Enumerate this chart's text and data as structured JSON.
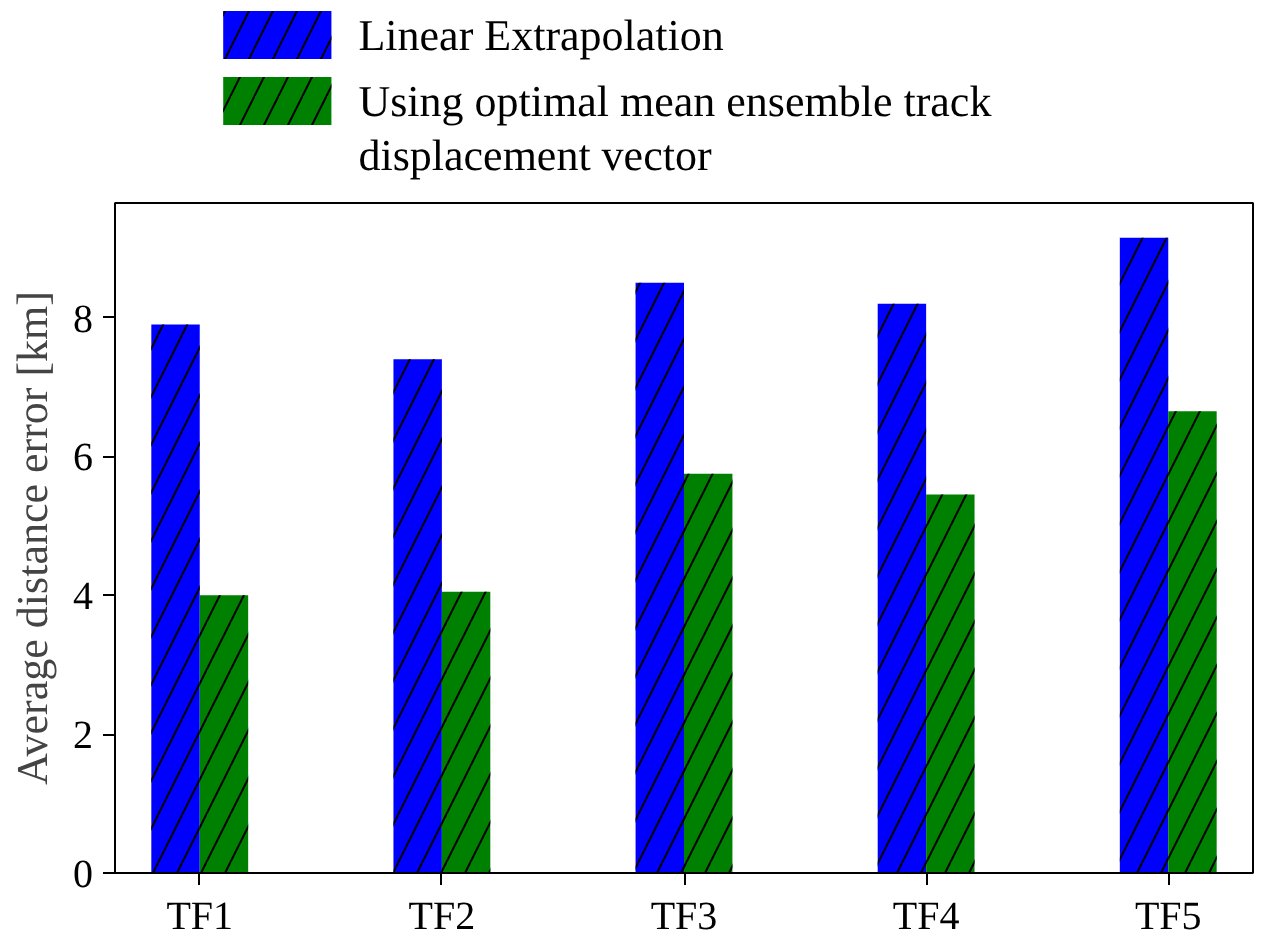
{
  "chart_data": {
    "type": "bar",
    "ylabel": "Average distance error [km]",
    "categories": [
      "TF1",
      "TF2",
      "TF3",
      "TF4",
      "TF5"
    ],
    "series": [
      {
        "name": "Linear Extrapolation",
        "color": "#0000ff",
        "values": [
          7.9,
          7.4,
          8.5,
          8.2,
          9.15
        ]
      },
      {
        "name": "Using optimal mean ensemble track displacement vector",
        "color": "#008000",
        "values": [
          4.0,
          4.05,
          5.75,
          5.45,
          6.65
        ]
      }
    ],
    "ylim": [
      0,
      9.65
    ],
    "yticks": [
      0,
      2,
      4,
      6,
      8
    ],
    "grid": false,
    "legend": "top"
  }
}
